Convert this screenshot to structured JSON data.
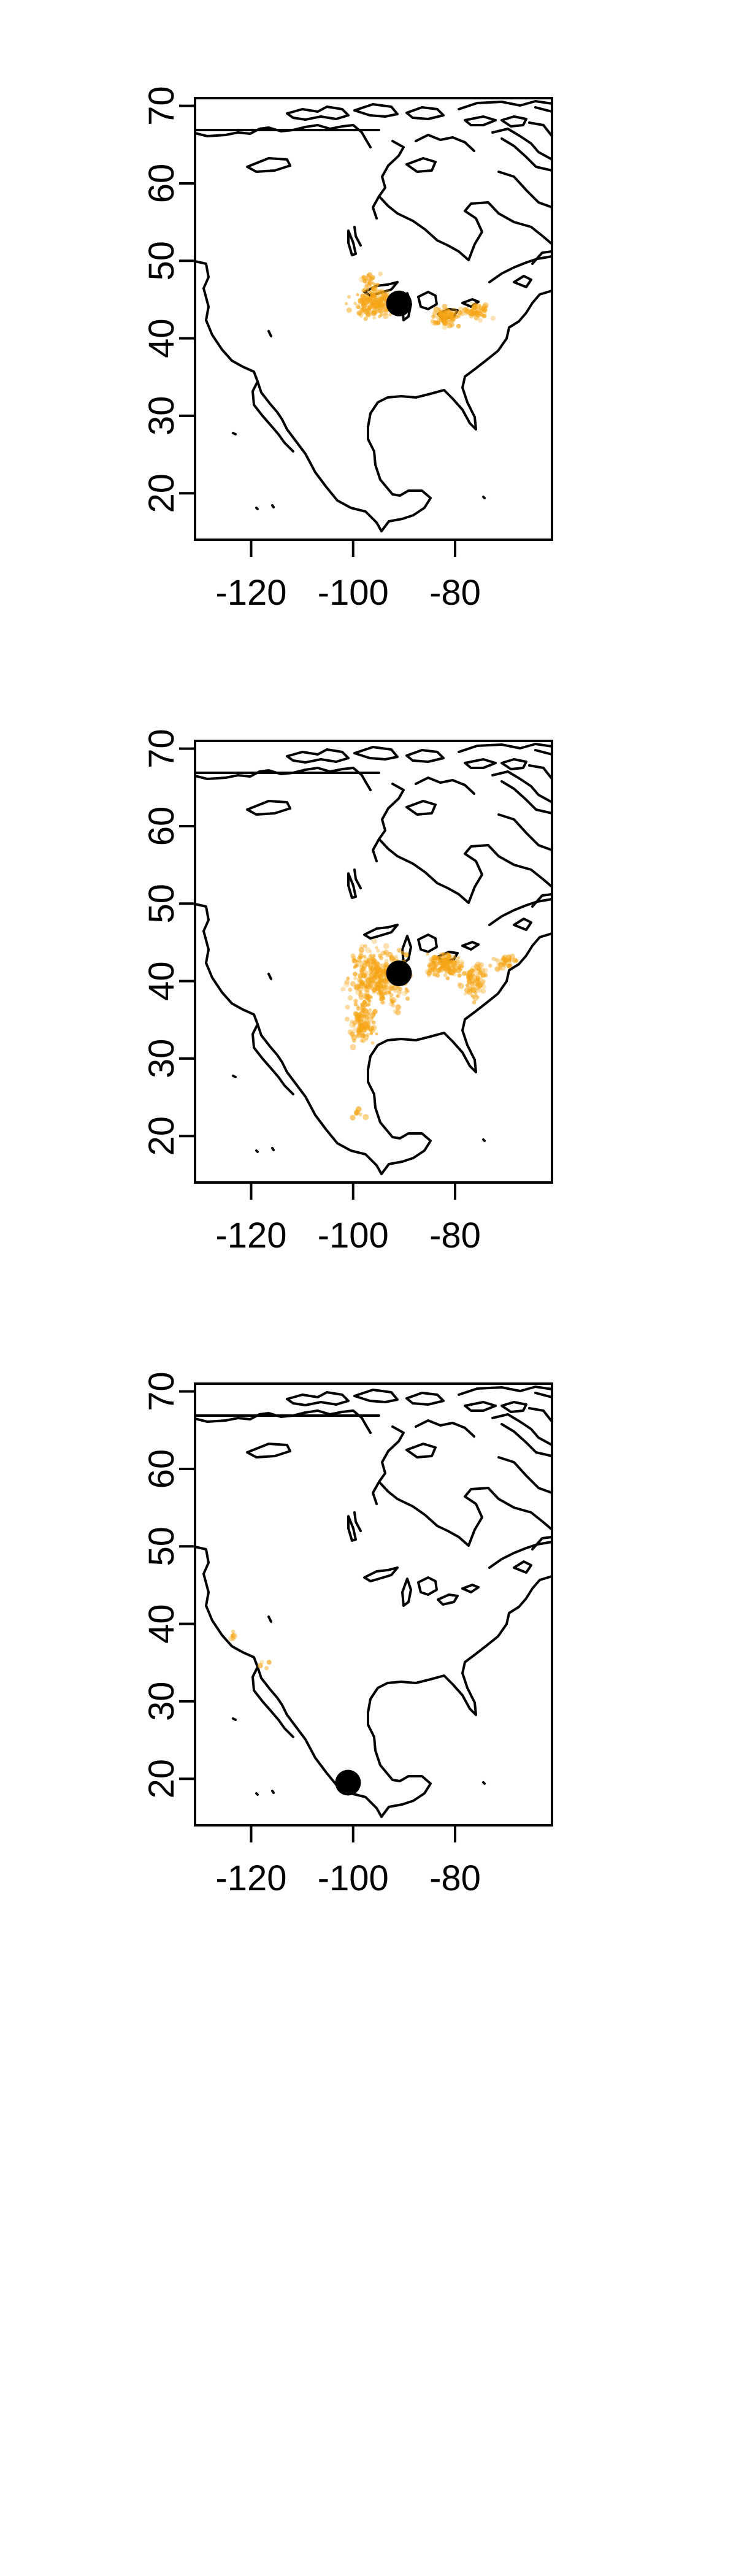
{
  "colors": {
    "points": "#F5A516",
    "marker": "#000000",
    "outline": "#000000",
    "background": "#FFFFFF"
  },
  "map": {
    "x_ticks": [
      "-120",
      "-100",
      "-80"
    ],
    "y_ticks": [
      "20",
      "30",
      "40",
      "50",
      "60",
      "70"
    ]
  },
  "chart_data": [
    {
      "type": "scatter",
      "title": "",
      "xlabel": "",
      "ylabel": "",
      "xlim": [
        -131,
        -61
      ],
      "ylim": [
        14,
        71
      ],
      "xticks": [
        -120,
        -100,
        -80
      ],
      "yticks": [
        20,
        30,
        40,
        50,
        60,
        70
      ],
      "grid": false,
      "marker": {
        "lon": -91,
        "lat": 44.5
      },
      "clusters": [
        {
          "lon": -95.5,
          "lat": 44.5,
          "spread_lon": 4.0,
          "spread_lat": 1.8,
          "n": 180
        },
        {
          "lon": -82,
          "lat": 42.8,
          "spread_lon": 2.5,
          "spread_lat": 1.2,
          "n": 80
        },
        {
          "lon": -76,
          "lat": 43.5,
          "spread_lon": 2.5,
          "spread_lat": 1.0,
          "n": 60
        },
        {
          "lon": -97,
          "lat": 47.5,
          "spread_lon": 2.0,
          "spread_lat": 1.0,
          "n": 25
        }
      ]
    },
    {
      "type": "scatter",
      "title": "",
      "xlabel": "",
      "ylabel": "",
      "xlim": [
        -131,
        -61
      ],
      "ylim": [
        14,
        71
      ],
      "xticks": [
        -120,
        -100,
        -80
      ],
      "yticks": [
        20,
        30,
        40,
        50,
        60,
        70
      ],
      "grid": false,
      "marker": {
        "lon": -91,
        "lat": 41
      },
      "clusters": [
        {
          "lon": -95,
          "lat": 40.5,
          "spread_lon": 5.0,
          "spread_lat": 3.5,
          "n": 320
        },
        {
          "lon": -98,
          "lat": 34.5,
          "spread_lon": 2.5,
          "spread_lat": 2.5,
          "n": 120
        },
        {
          "lon": -82,
          "lat": 42,
          "spread_lon": 3.5,
          "spread_lat": 1.5,
          "n": 140
        },
        {
          "lon": -76,
          "lat": 40,
          "spread_lon": 2.5,
          "spread_lat": 2.5,
          "n": 80
        },
        {
          "lon": -70,
          "lat": 42.5,
          "spread_lon": 2.0,
          "spread_lat": 1.0,
          "n": 30
        },
        {
          "lon": -99,
          "lat": 23,
          "spread_lon": 1.2,
          "spread_lat": 1.0,
          "n": 6
        }
      ]
    },
    {
      "type": "scatter",
      "title": "",
      "xlabel": "",
      "ylabel": "",
      "xlim": [
        -131,
        -61
      ],
      "ylim": [
        14,
        71
      ],
      "xticks": [
        -120,
        -100,
        -80
      ],
      "yticks": [
        20,
        30,
        40,
        50,
        60,
        70
      ],
      "grid": false,
      "marker": {
        "lon": -101,
        "lat": 19.5
      },
      "clusters": [
        {
          "lon": -123.5,
          "lat": 38.5,
          "spread_lon": 0.4,
          "spread_lat": 0.6,
          "n": 6
        },
        {
          "lon": -118,
          "lat": 35,
          "spread_lon": 1.5,
          "spread_lat": 1.0,
          "n": 4
        }
      ]
    }
  ]
}
